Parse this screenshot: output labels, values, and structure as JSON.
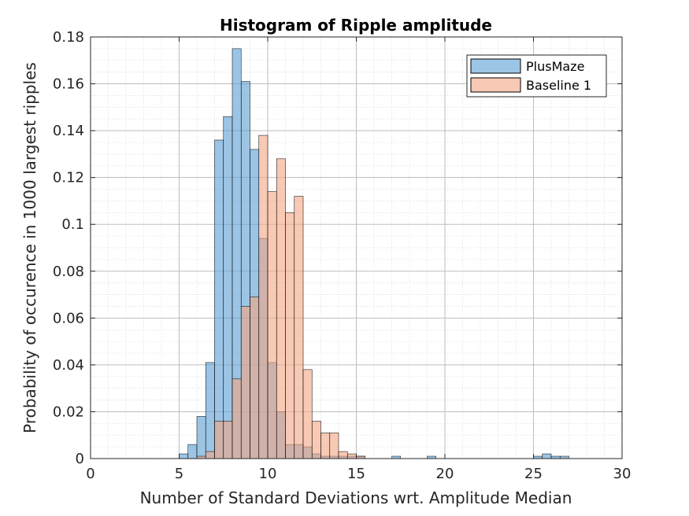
{
  "chart_data": {
    "type": "bar",
    "title": "Histogram of Ripple amplitude",
    "xlabel": "Number of Standard Deviations wrt. Amplitude Median",
    "ylabel": "Probability of occurence in 1000 largest ripples",
    "xlim": [
      0,
      30
    ],
    "ylim": [
      0,
      0.18
    ],
    "xticks": [
      "0",
      "5",
      "10",
      "15",
      "20",
      "25",
      "30"
    ],
    "yticks": [
      "0",
      "0.02",
      "0.04",
      "0.06",
      "0.08",
      "0.1",
      "0.12",
      "0.14",
      "0.16",
      "0.18"
    ],
    "grid": true,
    "minor_grid": true,
    "legend_position": "top-right",
    "bin_width": 0.5,
    "series": [
      {
        "name": "PlusMaze",
        "color": "#5a9fd4",
        "bin_starts": [
          5.0,
          5.5,
          6.0,
          6.5,
          7.0,
          7.5,
          8.0,
          8.5,
          9.0,
          9.5,
          10.0,
          10.5,
          11.0,
          11.5,
          12.0,
          12.5,
          13.0,
          13.5,
          14.0,
          14.5,
          15.0,
          17.0,
          19.0,
          25.0,
          25.5,
          26.0,
          26.5
        ],
        "values": [
          0.002,
          0.006,
          0.018,
          0.041,
          0.136,
          0.146,
          0.175,
          0.161,
          0.132,
          0.094,
          0.041,
          0.02,
          0.006,
          0.006,
          0.005,
          0.002,
          0.001,
          0.001,
          0.001,
          0.001,
          0.001,
          0.001,
          0.001,
          0.001,
          0.002,
          0.001,
          0.001
        ]
      },
      {
        "name": "Baseline 1",
        "color": "#f4a582",
        "bin_starts": [
          6.0,
          6.5,
          7.0,
          7.5,
          8.0,
          8.5,
          9.0,
          9.5,
          10.0,
          10.5,
          11.0,
          11.5,
          12.0,
          12.5,
          13.0,
          13.5,
          14.0,
          14.5,
          15.0
        ],
        "values": [
          0.001,
          0.003,
          0.016,
          0.016,
          0.034,
          0.065,
          0.069,
          0.138,
          0.114,
          0.128,
          0.105,
          0.112,
          0.038,
          0.016,
          0.011,
          0.011,
          0.003,
          0.002,
          0.001
        ]
      }
    ]
  }
}
